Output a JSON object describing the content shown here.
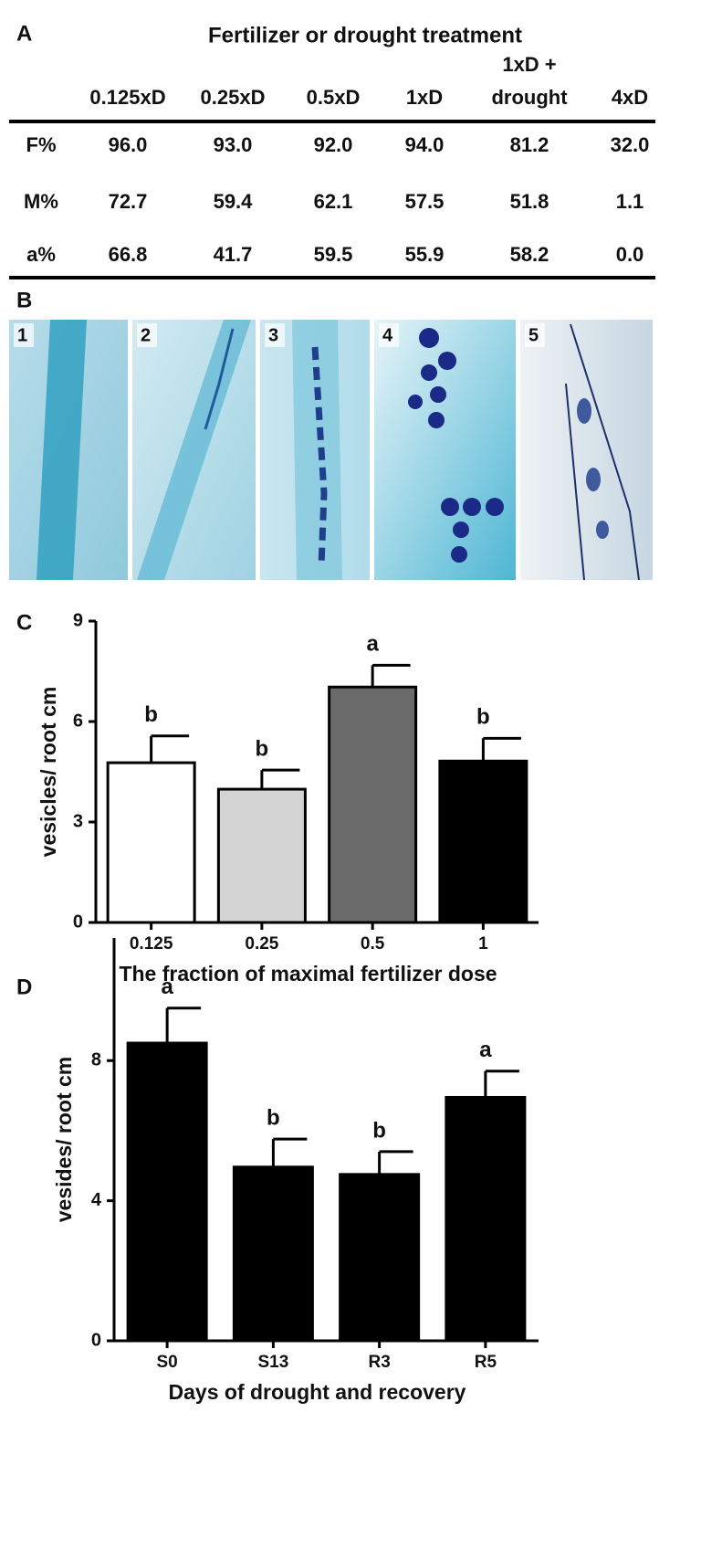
{
  "panels": {
    "a": "A",
    "b": "B",
    "c": "C",
    "d": "D"
  },
  "table": {
    "title": "Fertilizer or drought treatment",
    "columns": [
      "0.125xD",
      "0.25xD",
      "0.5xD",
      "1xD",
      [
        "1xD +",
        "drought"
      ],
      "4xD"
    ],
    "rows": [
      {
        "label": "F%",
        "cells": [
          "96.0",
          "93.0",
          "92.0",
          "94.0",
          "81.2",
          "32.0"
        ]
      },
      {
        "label": "M%",
        "cells": [
          "72.7",
          "59.4",
          "62.1",
          "57.5",
          "51.8",
          "1.1"
        ]
      },
      {
        "label": "a%",
        "cells": [
          "66.8",
          "41.7",
          "59.5",
          "55.9",
          "58.2",
          "0.0"
        ]
      }
    ]
  },
  "images": {
    "labels": [
      "1",
      "2",
      "3",
      "4",
      "5"
    ]
  },
  "chart_data": [
    {
      "type": "bar",
      "y_label": "vesicles/ root cm",
      "x_label": "The fraction of maximal fertilizer dose",
      "categories": [
        "0.125",
        "0.25",
        "0.5",
        "1"
      ],
      "values": [
        4.77,
        3.98,
        7.03,
        4.82
      ],
      "errors": [
        0.8,
        0.57,
        0.65,
        0.68
      ],
      "letters": [
        "b",
        "b",
        "a",
        "b"
      ],
      "colors": [
        "#ffffff",
        "#d4d4d4",
        "#6b6b6b",
        "#000000"
      ],
      "ylim": [
        0,
        9
      ],
      "yticks": [
        0,
        3,
        6,
        9
      ]
    },
    {
      "type": "bar",
      "y_label": "vesides/ root cm",
      "x_label": "Days of drought and recovery",
      "categories": [
        "S0",
        "S13",
        "R3",
        "R5"
      ],
      "values": [
        8.5,
        4.96,
        4.75,
        6.95
      ],
      "errors": [
        1.0,
        0.8,
        0.65,
        0.75
      ],
      "letters": [
        "a",
        "b",
        "b",
        "a"
      ],
      "colors": [
        "#000000",
        "#000000",
        "#000000",
        "#000000"
      ],
      "ylim": [
        0,
        11.5
      ],
      "yticks": [
        0,
        4,
        8
      ]
    }
  ]
}
